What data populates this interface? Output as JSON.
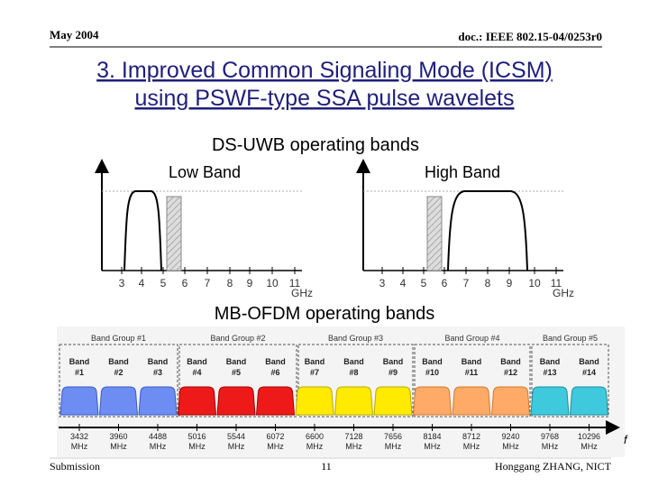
{
  "header": {
    "date": "May 2004",
    "doc": "doc.: IEEE 802.15-04/0253r0"
  },
  "title": {
    "line1": "3. Improved Common Signaling Mode (ICSM)",
    "line2": "using PSWF-type SSA pulse wavelets"
  },
  "ds_uwb": {
    "title": "DS-UWB operating bands",
    "low": {
      "label": "Low Band",
      "ticks": [
        3,
        4,
        5,
        6,
        7,
        8,
        9,
        10,
        11
      ],
      "unit": "GHz"
    },
    "high": {
      "label": "High Band",
      "ticks": [
        3,
        4,
        5,
        6,
        7,
        8,
        9,
        10,
        11
      ],
      "unit": "GHz"
    }
  },
  "mb_ofdm": {
    "title": "MB-OFDM operating bands",
    "groups": [
      "Band Group #1",
      "Band Group #2",
      "Band Group #3",
      "Band Group #4",
      "Band Group #5"
    ],
    "bands": [
      {
        "name": "Band",
        "number": "#1",
        "freq": "3432",
        "unit": "MHz"
      },
      {
        "name": "Band",
        "number": "#2",
        "freq": "3960",
        "unit": "MHz"
      },
      {
        "name": "Band",
        "number": "#3",
        "freq": "4488",
        "unit": "MHz"
      },
      {
        "name": "Band",
        "number": "#4",
        "freq": "5016",
        "unit": "MHz"
      },
      {
        "name": "Band",
        "number": "#5",
        "freq": "5544",
        "unit": "MHz"
      },
      {
        "name": "Band",
        "number": "#6",
        "freq": "6072",
        "unit": "MHz"
      },
      {
        "name": "Band",
        "number": "#7",
        "freq": "6600",
        "unit": "MHz"
      },
      {
        "name": "Band",
        "number": "#8",
        "freq": "7128",
        "unit": "MHz"
      },
      {
        "name": "Band",
        "number": "#9",
        "freq": "7656",
        "unit": "MHz"
      },
      {
        "name": "Band",
        "number": "#10",
        "freq": "8184",
        "unit": "MHz"
      },
      {
        "name": "Band",
        "number": "#11",
        "freq": "8712",
        "unit": "MHz"
      },
      {
        "name": "Band",
        "number": "#12",
        "freq": "9240",
        "unit": "MHz"
      },
      {
        "name": "Band",
        "number": "#13",
        "freq": "9768",
        "unit": "MHz"
      },
      {
        "name": "Band",
        "number": "#14",
        "freq": "10296",
        "unit": "MHz"
      }
    ],
    "axis_label": "f"
  },
  "footer": {
    "left": "Submission",
    "page": "11",
    "author": "Honggang ZHANG, NICT"
  }
}
